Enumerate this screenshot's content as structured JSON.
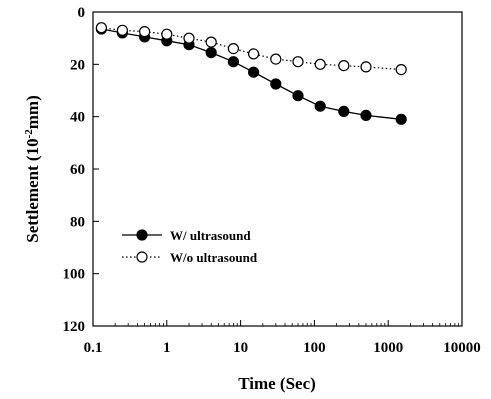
{
  "chart_data": {
    "type": "line",
    "xlabel": "Time (Sec)",
    "ylabel_main": "Settlement (10",
    "ylabel_sup": "-2",
    "ylabel_unit": "mm)",
    "x_scale": "log",
    "xlim": [
      0.1,
      10000
    ],
    "x_ticks": [
      0.1,
      1,
      10,
      100,
      1000,
      10000
    ],
    "x_tick_labels": [
      "0.1",
      "1",
      "10",
      "100",
      "1000",
      "10000"
    ],
    "ylim": [
      0,
      120
    ],
    "y_inverted": true,
    "y_ticks": [
      0,
      20,
      40,
      60,
      80,
      100,
      120
    ],
    "y_tick_labels": [
      "0",
      "20",
      "40",
      "60",
      "80",
      "100",
      "120"
    ],
    "grid": false,
    "legend_position": "lower-left",
    "series": [
      {
        "name": "W/ ultrasound",
        "marker": "filled-circle",
        "line": "solid",
        "color": "#000000",
        "points": [
          [
            0.13,
            6.5
          ],
          [
            0.25,
            8
          ],
          [
            0.5,
            9.5
          ],
          [
            1,
            11
          ],
          [
            2,
            12.5
          ],
          [
            4,
            15.5
          ],
          [
            8,
            19
          ],
          [
            15,
            23
          ],
          [
            30,
            27.5
          ],
          [
            60,
            32
          ],
          [
            120,
            36
          ],
          [
            250,
            38
          ],
          [
            500,
            39.5
          ],
          [
            1500,
            41
          ]
        ]
      },
      {
        "name": "W/o ultrasound",
        "marker": "open-circle",
        "line": "dotted",
        "color": "#000000",
        "points": [
          [
            0.13,
            6
          ],
          [
            0.25,
            7
          ],
          [
            0.5,
            7.5
          ],
          [
            1,
            8.5
          ],
          [
            2,
            10
          ],
          [
            4,
            11.5
          ],
          [
            8,
            14
          ],
          [
            15,
            16
          ],
          [
            30,
            18
          ],
          [
            60,
            19
          ],
          [
            120,
            20
          ],
          [
            250,
            20.5
          ],
          [
            500,
            21
          ],
          [
            1500,
            22
          ]
        ]
      }
    ]
  }
}
